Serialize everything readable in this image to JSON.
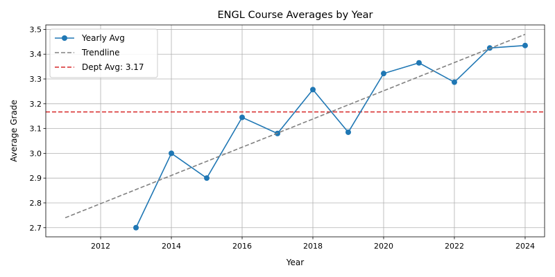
{
  "chart_data": {
    "type": "line",
    "title": "ENGL Course Averages by Year",
    "xlabel": "Year",
    "ylabel": "Average Grade",
    "xlim": [
      2010.45,
      2024.55
    ],
    "ylim": [
      2.663,
      3.518
    ],
    "xticks": [
      2012,
      2014,
      2016,
      2018,
      2020,
      2022,
      2024
    ],
    "yticks": [
      2.7,
      2.8,
      2.9,
      3.0,
      3.1,
      3.2,
      3.3,
      3.4,
      3.5
    ],
    "grid": true,
    "legend_position": "top-left",
    "series": [
      {
        "name": "Yearly Avg",
        "style": "solid-markers",
        "color": "#1f77b4",
        "x": [
          2013,
          2014,
          2015,
          2016,
          2017,
          2018,
          2019,
          2020,
          2021,
          2022,
          2023,
          2024
        ],
        "y": [
          2.7,
          3.0,
          2.9,
          3.145,
          3.08,
          3.257,
          3.085,
          3.322,
          3.365,
          3.287,
          3.425,
          3.435
        ]
      },
      {
        "name": "Trendline",
        "style": "dashed",
        "color": "#808080",
        "x": [
          2011,
          2024
        ],
        "y": [
          2.74,
          3.48
        ]
      }
    ],
    "reference_lines": [
      {
        "name": "Dept Avg: 3.17",
        "orientation": "horizontal",
        "y": 3.167,
        "color": "#d62728",
        "style": "dashed"
      }
    ]
  }
}
